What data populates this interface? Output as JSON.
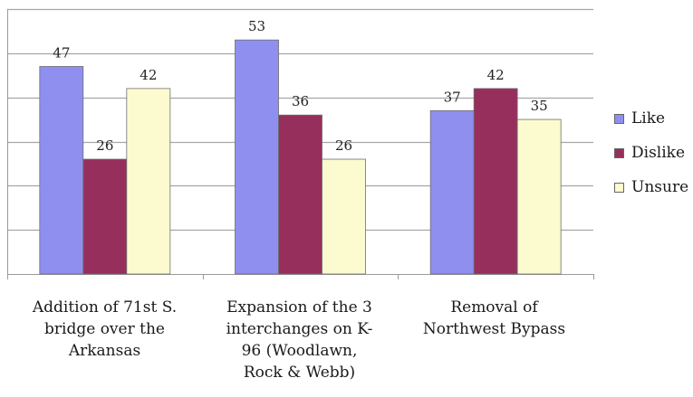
{
  "chart_data": {
    "type": "bar",
    "categories": [
      "Addition of 71st S. bridge over the Arkansas",
      "Expansion of the 3 interchanges on K-96 (Woodlawn, Rock & Webb)",
      "Removal of Northwest Bypass"
    ],
    "category_lines": [
      [
        "Addition of 71st S.",
        "bridge over the",
        "Arkansas"
      ],
      [
        "Expansion of the 3",
        "interchanges on K-",
        "96 (Woodlawn,",
        "Rock & Webb)"
      ],
      [
        "Removal of",
        "Northwest Bypass"
      ]
    ],
    "series": [
      {
        "name": "Like",
        "values": [
          47,
          53,
          37
        ],
        "color": "#8f8ff0"
      },
      {
        "name": "Dislike",
        "values": [
          26,
          36,
          42
        ],
        "color": "#962f5c"
      },
      {
        "name": "Unsure",
        "values": [
          42,
          26,
          35
        ],
        "color": "#fbfbcf"
      }
    ],
    "ylim": [
      0,
      60
    ],
    "grid": true,
    "legend_position": "right",
    "data_labels": true
  }
}
